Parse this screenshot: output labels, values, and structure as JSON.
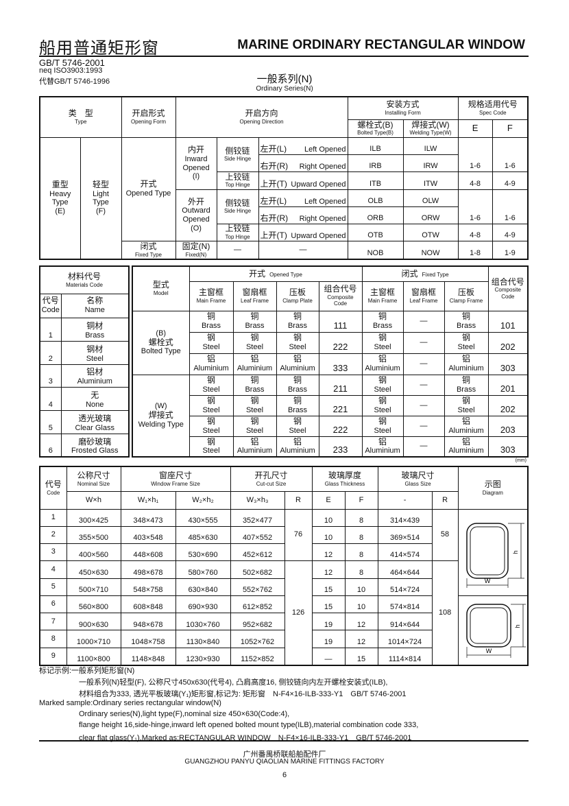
{
  "header": {
    "title_cn": "船用普通矩形窗",
    "title_en": "MARINE ORDINARY RECTANGULAR WINDOW",
    "standard": "GB/T 5746-2001",
    "neq": "neq ISO3903:1993",
    "replaces": "代替GB/T 5746-1996",
    "series_cn": "一般系列(N)",
    "series_en": "Ordinary Series(N)"
  },
  "table1": {
    "head": {
      "type_cn": "类　型",
      "type_en": "Type",
      "form_cn": "开启形式",
      "form_en": "Opening Form",
      "dir_cn": "开启方向",
      "dir_en": "Opening Direction",
      "install_cn": "安装方式",
      "install_en": "Installing Form",
      "bolted_cn": "螺栓式(B)",
      "bolted_en": "Bolted Type(B)",
      "welding_cn": "焊接式(W)",
      "welding_en": "Welding Type(W)",
      "spec_cn": "规格适用代号",
      "spec_en": "Spec Code",
      "E": "E",
      "F": "F"
    },
    "heavy": [
      "重型",
      "Heavy",
      "Type",
      "(E)"
    ],
    "light": [
      "轻型",
      "Light",
      "Type",
      "(F)"
    ],
    "opened": [
      "开式",
      "Opened Type"
    ],
    "inward": [
      "内开",
      "Inward",
      "Opened",
      "(I)"
    ],
    "outward": [
      "外开",
      "Outward",
      "Opened",
      "(O)"
    ],
    "side_hinge": [
      "侧铰链",
      "Side Hinge"
    ],
    "top_hinge": [
      "上铰链",
      "Top Hinge"
    ],
    "left": [
      "左开(L)",
      "Left Opened"
    ],
    "right": [
      "右开(R)",
      "Right Opened"
    ],
    "up": [
      "上开(T)",
      "Upward Opened"
    ],
    "fixed_type": [
      "闭式",
      "Fixed Type"
    ],
    "fixed": [
      "固定(N)",
      "Fixed(N)"
    ],
    "dash": "—",
    "rows": [
      {
        "bolted": "ILB",
        "welding": "ILW"
      },
      {
        "bolted": "IRB",
        "welding": "IRW"
      },
      {
        "bolted": "ITB",
        "welding": "ITW"
      },
      {
        "bolted": "OLB",
        "welding": "OLW"
      },
      {
        "bolted": "ORB",
        "welding": "ORW"
      },
      {
        "bolted": "OTB",
        "welding": "OTW"
      },
      {
        "bolted": "NOB",
        "welding": "NOW"
      }
    ],
    "spec": [
      {
        "e": "1-6",
        "f": "1-6"
      },
      {
        "e": "4-8",
        "f": "4-9"
      },
      {
        "e": "1-6",
        "f": "1-6"
      },
      {
        "e": "4-8",
        "f": "4-9"
      },
      {
        "e": "1-8",
        "f": "1-9"
      }
    ]
  },
  "materials": {
    "title_cn": "材料代号",
    "title_en": "Materials Code",
    "code_cn": "代号",
    "code_en": "Code",
    "name_cn": "名称",
    "name_en": "Name",
    "items": [
      {
        "code": "1",
        "cn": "铜材",
        "en": "Brass"
      },
      {
        "code": "2",
        "cn": "钢材",
        "en": "Steel"
      },
      {
        "code": "3",
        "cn": "铝材",
        "en": "Aluminium"
      },
      {
        "code": "4",
        "cn": "无",
        "en": "None"
      },
      {
        "code": "5",
        "cn": "透光玻璃",
        "en": "Clear Glass"
      },
      {
        "code": "6",
        "cn": "磨砂玻璃",
        "en": "Frosted Glass"
      }
    ]
  },
  "model": {
    "head": {
      "model_cn": "型式",
      "model_en": "Model",
      "opened_cn": "开式",
      "opened_en": "Opened Type",
      "fixed_cn": "闭式",
      "fixed_en": "Fixed Type",
      "main_cn": "主窗框",
      "main_en": "Main Frame",
      "leaf_cn": "窗扇框",
      "leaf_en": "Leaf Frame",
      "clamp_cn": "压板",
      "clamp_en": "Clamp Plate",
      "clamp2_en": "Clamp Frame",
      "comp_cn": "组合代号",
      "comp_en1": "Composite",
      "comp_en2": "Code"
    },
    "bolted": [
      "(B)",
      "螺栓式",
      "Bolted Type"
    ],
    "welded": [
      "(W)",
      "焊接式",
      "Welding Type"
    ],
    "dash": "—",
    "rows": [
      {
        "open": [
          [
            "铜",
            "Brass"
          ],
          [
            "铜",
            "Brass"
          ],
          [
            "铜",
            "Brass"
          ]
        ],
        "open_code": "111",
        "fixed": [
          [
            "铜",
            "Brass"
          ],
          [
            "铜",
            "Brass"
          ]
        ],
        "fixed_code": "101"
      },
      {
        "open": [
          [
            "钢",
            "Steel"
          ],
          [
            "钢",
            "Steel"
          ],
          [
            "钢",
            "Steel"
          ]
        ],
        "open_code": "222",
        "fixed": [
          [
            "钢",
            "Steel"
          ],
          [
            "钢",
            "Steel"
          ]
        ],
        "fixed_code": "202"
      },
      {
        "open": [
          [
            "铝",
            "Aluminium"
          ],
          [
            "铝",
            "Aluminium"
          ],
          [
            "铝",
            "Aluminium"
          ]
        ],
        "open_code": "333",
        "fixed": [
          [
            "铝",
            "Aluminium"
          ],
          [
            "铝",
            "Aluminium"
          ]
        ],
        "fixed_code": "303"
      },
      {
        "open": [
          [
            "钢",
            "Steel"
          ],
          [
            "铜",
            "Brass"
          ],
          [
            "铜",
            "Brass"
          ]
        ],
        "open_code": "211",
        "fixed": [
          [
            "钢",
            "Steel"
          ],
          [
            "铜",
            "Brass"
          ]
        ],
        "fixed_code": "201"
      },
      {
        "open": [
          [
            "钢",
            "Steel"
          ],
          [
            "钢",
            "Steel"
          ],
          [
            "铜",
            "Brass"
          ]
        ],
        "open_code": "221",
        "fixed": [
          [
            "钢",
            "Steel"
          ],
          [
            "钢",
            "Steel"
          ]
        ],
        "fixed_code": "202"
      },
      {
        "open": [
          [
            "钢",
            "Steel"
          ],
          [
            "钢",
            "Steel"
          ],
          [
            "钢",
            "Steel"
          ]
        ],
        "open_code": "222",
        "fixed": [
          [
            "钢",
            "Steel"
          ],
          [
            "铝",
            "Aluminium"
          ]
        ],
        "fixed_code": "203"
      },
      {
        "open": [
          [
            "钢",
            "Steel"
          ],
          [
            "铝",
            "Aluminium"
          ],
          [
            "铝",
            "Aluminium"
          ]
        ],
        "open_code": "233",
        "fixed": [
          [
            "铝",
            "Aluminium"
          ],
          [
            "铝",
            "Aluminium"
          ]
        ],
        "fixed_code": "303"
      }
    ]
  },
  "unit": "(mm)",
  "sizes": {
    "head": {
      "code_cn": "代号",
      "code_en": "Code",
      "nominal_cn": "公称尺寸",
      "nominal_en": "Nominal Size",
      "frame_cn": "窗座尺寸",
      "frame_en": "Window Frame Size",
      "cut_cn": "开孔尺寸",
      "cut_en": "Cut-cut Size",
      "thick_cn": "玻璃厚度",
      "thick_en": "Glass Thickness",
      "glass_cn": "玻璃尺寸",
      "glass_en": "Glass Size",
      "diagram_cn": "示图",
      "diagram_en": "Diagram",
      "wh": "W×h",
      "w1h1": "W₁×h₁",
      "w2h2": "W₂×h₂",
      "w3h3": "W₃×h₃",
      "R": "R",
      "E": "E",
      "F": "F",
      "dash": "-"
    },
    "rows": [
      {
        "code": "1",
        "nominal": "300×425",
        "w1h1": "348×473",
        "w2h2": "430×555",
        "w3h3": "352×477",
        "e": "10",
        "f": "8",
        "glass": "314×439"
      },
      {
        "code": "2",
        "nominal": "355×500",
        "w1h1": "403×548",
        "w2h2": "485×630",
        "w3h3": "407×552",
        "e": "10",
        "f": "8",
        "glass": "369×514"
      },
      {
        "code": "3",
        "nominal": "400×560",
        "w1h1": "448×608",
        "w2h2": "530×690",
        "w3h3": "452×612",
        "e": "12",
        "f": "8",
        "glass": "414×574"
      },
      {
        "code": "4",
        "nominal": "450×630",
        "w1h1": "498×678",
        "w2h2": "580×760",
        "w3h3": "502×682",
        "e": "12",
        "f": "8",
        "glass": "464×644"
      },
      {
        "code": "5",
        "nominal": "500×710",
        "w1h1": "548×758",
        "w2h2": "630×840",
        "w3h3": "552×762",
        "e": "15",
        "f": "10",
        "glass": "514×724"
      },
      {
        "code": "6",
        "nominal": "560×800",
        "w1h1": "608×848",
        "w2h2": "690×930",
        "w3h3": "612×852",
        "e": "15",
        "f": "10",
        "glass": "574×814"
      },
      {
        "code": "7",
        "nominal": "900×630",
        "w1h1": "948×678",
        "w2h2": "1030×760",
        "w3h3": "952×682",
        "e": "19",
        "f": "12",
        "glass": "914×644"
      },
      {
        "code": "8",
        "nominal": "1000×710",
        "w1h1": "1048×758",
        "w2h2": "1130×840",
        "w3h3": "1052×762",
        "e": "19",
        "f": "12",
        "glass": "1014×724"
      },
      {
        "code": "9",
        "nominal": "1100×800",
        "w1h1": "1148×848",
        "w2h2": "1230×930",
        "w3h3": "1152×852",
        "e": "—",
        "f": "15",
        "glass": "1114×814"
      }
    ],
    "cut_r": [
      "76",
      "126"
    ],
    "glass_r": [
      "58",
      "108"
    ],
    "diagram_w": "W",
    "diagram_h": "h"
  },
  "notes": [
    "标记示例:一般系列矩形窗(N)",
    "一般系列(N)轻型(F), 公称尺寸450x630(代号4), 凸肩高度16, 侧铰链向内左开螺栓安装式(ILB),",
    "材料组合为333, 透光平板玻璃(Y₁)矩形窗,标记为: 矩形窗　N-F4×16-ILB-333-Y1　GB/T 5746-2001",
    "Marked sample:Ordinary series rectangular window(N)",
    "Ordinary series(N),light type(F),nominal size 450×630(Code:4),",
    "flange height 16,side-hinge,inward left opened bolted mount type(ILB),material combination code 333,",
    "clear flat glass(Y₁).Marked as:RECTANGULAR WINDOW　N-F4×16-ILB-333-Y1　GB/T 5746-2001"
  ],
  "footer": {
    "company_cn": "广州番禺桥联船舶配件厂",
    "company_en": "GUANGZHOU PANYU QIAOLIAN MARINE FITTINGS FACTORY",
    "page": "6"
  }
}
